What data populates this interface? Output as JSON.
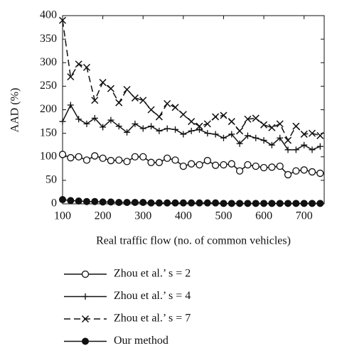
{
  "chart_data": {
    "type": "line",
    "x_label": "Real traffic flow (no. of common vehicles)",
    "y_label": "AAD (%)",
    "xlim": [
      100,
      750
    ],
    "ylim": [
      0,
      400
    ],
    "xticks": [
      100,
      200,
      300,
      400,
      500,
      600,
      700
    ],
    "yticks": [
      0,
      50,
      100,
      150,
      200,
      250,
      300,
      350,
      400
    ],
    "x": [
      100,
      120,
      140,
      160,
      180,
      200,
      220,
      240,
      260,
      280,
      300,
      320,
      340,
      360,
      380,
      400,
      420,
      440,
      460,
      480,
      500,
      520,
      540,
      560,
      580,
      600,
      620,
      640,
      660,
      680,
      700,
      720,
      740
    ],
    "series": [
      {
        "name": "Zhou et al.’ s = 2",
        "color": "#111111",
        "marker": "circle-open",
        "line_style": "solid",
        "values": [
          105,
          98,
          100,
          93,
          102,
          97,
          92,
          93,
          90,
          100,
          100,
          88,
          88,
          97,
          93,
          80,
          85,
          83,
          92,
          82,
          83,
          85,
          70,
          83,
          80,
          77,
          78,
          80,
          62,
          70,
          72,
          68,
          65
        ]
      },
      {
        "name": "Zhou et al.’ s = 4",
        "color": "#111111",
        "marker": "plus",
        "line_style": "solid",
        "values": [
          175,
          210,
          180,
          170,
          182,
          163,
          178,
          165,
          152,
          170,
          160,
          165,
          155,
          160,
          158,
          148,
          155,
          158,
          150,
          148,
          140,
          148,
          128,
          145,
          140,
          135,
          125,
          140,
          115,
          115,
          125,
          115,
          122
        ]
      },
      {
        "name": "Zhou et al.’ s = 7",
        "color": "#111111",
        "marker": "x",
        "line_style": "dashed",
        "values": [
          390,
          270,
          297,
          290,
          220,
          258,
          245,
          215,
          243,
          225,
          220,
          200,
          185,
          213,
          205,
          190,
          175,
          165,
          170,
          185,
          188,
          175,
          155,
          180,
          182,
          168,
          162,
          170,
          135,
          165,
          148,
          150,
          145
        ]
      },
      {
        "name": "Our method",
        "color": "#111111",
        "marker": "circle-filled",
        "line_style": "solid",
        "values": [
          9,
          7,
          6,
          5,
          5,
          4,
          4,
          3,
          3,
          3,
          3,
          2,
          2,
          2,
          2,
          2,
          2,
          2,
          2,
          2,
          1,
          1,
          1,
          1,
          1,
          1,
          1,
          1,
          1,
          1,
          1,
          1,
          1
        ]
      }
    ]
  }
}
